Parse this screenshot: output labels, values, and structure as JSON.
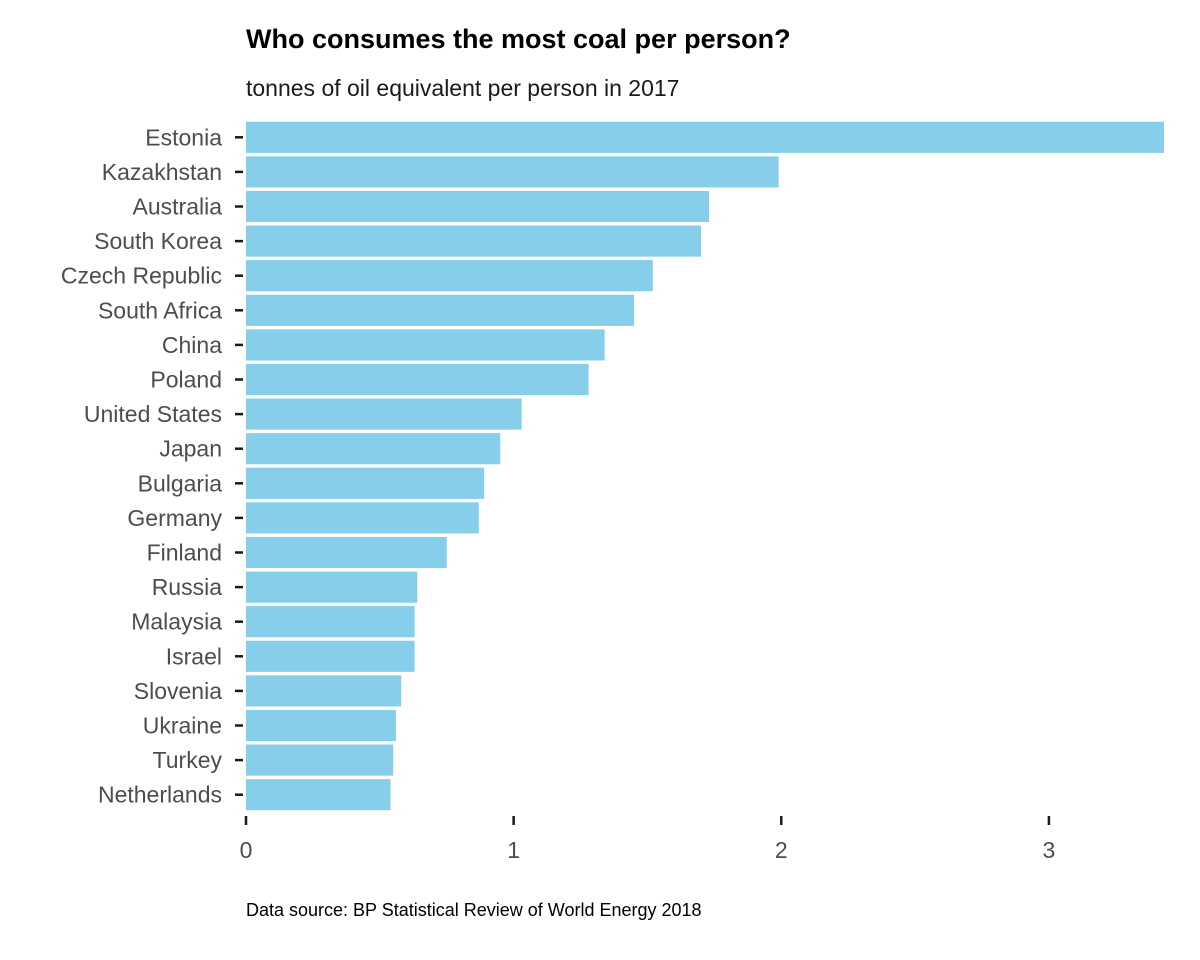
{
  "chart_data": {
    "type": "bar",
    "orientation": "horizontal",
    "title": "Who consumes the most coal per person?",
    "subtitle": "tonnes of oil equivalent per person in 2017",
    "caption": "Data source: BP Statistical Review of World Energy 2018",
    "categories": [
      "Estonia",
      "Kazakhstan",
      "Australia",
      "South Korea",
      "Czech Republic",
      "South Africa",
      "China",
      "Poland",
      "United States",
      "Japan",
      "Bulgaria",
      "Germany",
      "Finland",
      "Russia",
      "Malaysia",
      "Israel",
      "Slovenia",
      "Ukraine",
      "Turkey",
      "Netherlands"
    ],
    "values": [
      3.43,
      1.99,
      1.73,
      1.7,
      1.52,
      1.45,
      1.34,
      1.28,
      1.03,
      0.95,
      0.89,
      0.87,
      0.75,
      0.64,
      0.63,
      0.63,
      0.58,
      0.56,
      0.55,
      0.54
    ],
    "xlim": [
      0,
      3.43
    ],
    "xticks": [
      "0",
      "1",
      "2",
      "3"
    ],
    "xlabel": "",
    "ylabel": "",
    "grid": false,
    "bar_color": "#87CEEB"
  }
}
